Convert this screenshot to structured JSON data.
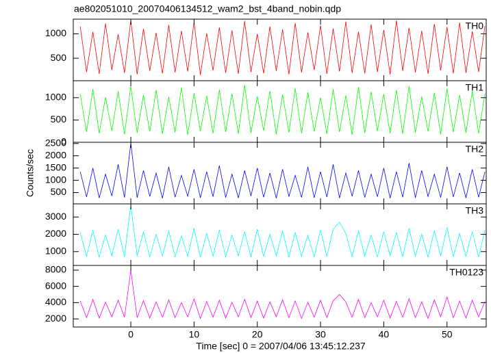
{
  "chart_data": {
    "type": "line",
    "title": "ae802051010_20070406134512_wam2_bst_4band_nobin.qdp",
    "xlabel": "Time [sec] 0 = 2007/04/06 13:45:12.237",
    "ylabel": "Counts/sec",
    "xlim": [
      -9.1,
      56.2
    ],
    "xticks": [
      0,
      10,
      20,
      30,
      40,
      50
    ],
    "x": [
      -8,
      -7,
      -6,
      -5,
      -4,
      -3,
      -2,
      -1,
      0,
      1,
      2,
      3,
      4,
      5,
      6,
      7,
      8,
      9,
      10,
      11,
      12,
      13,
      14,
      15,
      16,
      17,
      18,
      19,
      20,
      21,
      22,
      23,
      24,
      25,
      26,
      27,
      28,
      29,
      30,
      31,
      32,
      33,
      34,
      35,
      36,
      37,
      38,
      39,
      40,
      41,
      42,
      43,
      44,
      45,
      46,
      47,
      48,
      49,
      50,
      51,
      52,
      53,
      54,
      55,
      56
    ],
    "panels": [
      {
        "name": "TH0",
        "color": "#ff0000",
        "ylim": [
          40,
          1300
        ],
        "yticks": [
          500,
          1000
        ],
        "values": [
          1150,
          220,
          1040,
          180,
          1210,
          260,
          990,
          200,
          1280,
          170,
          1100,
          240,
          1020,
          190,
          1180,
          210,
          1060,
          230,
          1240,
          160,
          1010,
          250,
          1130,
          200,
          1070,
          180,
          1260,
          220,
          1000,
          190,
          1150,
          240,
          1090,
          170,
          1220,
          210,
          1030,
          260,
          1170,
          180,
          1110,
          230,
          1250,
          200,
          1040,
          190,
          1190,
          220,
          1080,
          170,
          1270,
          240,
          1120,
          210,
          1060,
          180,
          1200,
          250,
          1140,
          190,
          1230,
          200,
          1050,
          220,
          1160
        ]
      },
      {
        "name": "TH1",
        "color": "#00ff00",
        "ylim": [
          0,
          1380
        ],
        "yticks": [
          0,
          500,
          1000
        ],
        "values": [
          1080,
          230,
          1190,
          200,
          1010,
          260,
          1140,
          180,
          1250,
          210,
          1060,
          240,
          1170,
          190,
          1020,
          220,
          1230,
          170,
          1100,
          250,
          1040,
          200,
          1180,
          230,
          1090,
          190,
          1280,
          210,
          1030,
          260,
          1150,
          180,
          1070,
          220,
          1210,
          200,
          1120,
          240,
          1000,
          190,
          1190,
          230,
          1050,
          170,
          1240,
          210,
          1130,
          250,
          1080,
          200,
          1170,
          190,
          1260,
          220,
          1020,
          240,
          1110,
          180,
          1200,
          230,
          1060,
          210,
          1150,
          200,
          1090
        ]
      },
      {
        "name": "TH2",
        "color": "#0000ff",
        "ylim": [
          40,
          2550
        ],
        "yticks": [
          500,
          1000,
          1500,
          2000,
          2500
        ],
        "values": [
          1350,
          320,
          1500,
          280,
          1250,
          360,
          1650,
          300,
          2520,
          290,
          1400,
          340,
          1300,
          270,
          1550,
          310,
          1200,
          350,
          1450,
          290,
          1350,
          330,
          1600,
          300,
          1250,
          280,
          1400,
          360,
          1500,
          310,
          1300,
          270,
          1450,
          340,
          1200,
          300,
          1550,
          290,
          1350,
          320,
          1650,
          280,
          1300,
          350,
          1400,
          300,
          1250,
          330,
          1500,
          270,
          1350,
          310,
          1700,
          290,
          1400,
          340,
          1250,
          300,
          1550,
          320,
          1300,
          280,
          1450,
          310,
          1350
        ]
      },
      {
        "name": "TH3",
        "color": "#00ffff",
        "ylim": [
          200,
          3760
        ],
        "yticks": [
          1000,
          2000,
          3000
        ],
        "values": [
          2100,
          720,
          2250,
          680,
          1950,
          760,
          2300,
          700,
          3700,
          740,
          2150,
          690,
          2000,
          750,
          2200,
          710,
          1900,
          730,
          2350,
          670,
          2050,
          740,
          2250,
          700,
          1950,
          760,
          2150,
          690,
          2300,
          720,
          2000,
          750,
          2200,
          680,
          2100,
          730,
          1950,
          700,
          2250,
          720,
          2300,
          2700,
          2050,
          710,
          2200,
          740,
          1950,
          690,
          2150,
          760,
          2100,
          700,
          2350,
          730,
          2000,
          680,
          2200,
          750,
          2400,
          710,
          2050,
          740,
          2150,
          690,
          2250
        ]
      },
      {
        "name": "TH0123",
        "color": "#ff00ff",
        "ylim": [
          1000,
          8580
        ],
        "yticks": [
          2000,
          4000,
          6000,
          8000
        ],
        "values": [
          4200,
          2150,
          4400,
          2100,
          4050,
          2250,
          4300,
          2200,
          8000,
          2150,
          4250,
          2100,
          4100,
          2200,
          4350,
          2150,
          4000,
          2250,
          4450,
          2050,
          4150,
          2200,
          4300,
          2100,
          4050,
          2250,
          4400,
          2150,
          4200,
          2100,
          4100,
          2250,
          4350,
          2150,
          4200,
          2050,
          4050,
          2200,
          4300,
          2150,
          4250,
          5000,
          4100,
          2200,
          4400,
          2150,
          4000,
          2250,
          4300,
          2100,
          4150,
          2200,
          4500,
          2150,
          4100,
          2050,
          4350,
          2250,
          4700,
          2150,
          4200,
          2100,
          4300,
          2250,
          4150
        ]
      }
    ]
  }
}
